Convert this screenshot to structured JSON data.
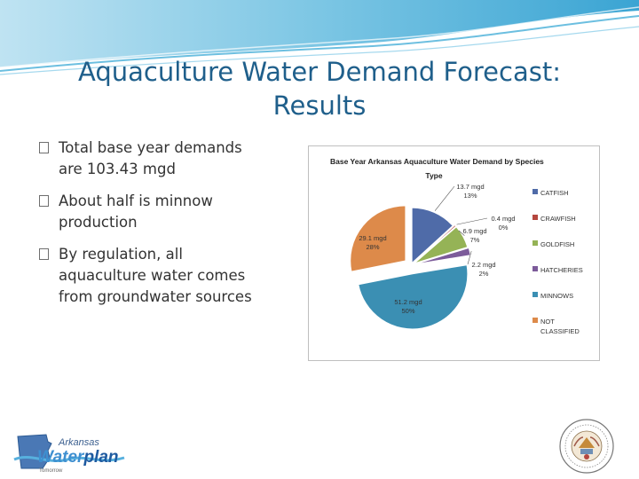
{
  "slide": {
    "title_line1": "Aquaculture Water Demand Forecast:",
    "title_line2": "Results",
    "bullets": [
      "Total base year demands are 103.43 mgd",
      "About half is minnow production",
      "By regulation, all aquaculture water comes from groundwater sources"
    ]
  },
  "logo": {
    "top": "Arkansas",
    "main_a": "Water",
    "main_b": "plan",
    "sub": "Tomorrow"
  },
  "colors": {
    "title": "#1f5f8b",
    "wave": "#5ab2d8",
    "catfish": "#4f6ba8",
    "crawfish": "#b5473f",
    "goldfish": "#95b356",
    "hatcheries": "#7c5b9a",
    "minnows": "#3b8fb3",
    "not_classified": "#dd8a4a"
  },
  "chart_data": {
    "type": "pie",
    "title_line1": "Base Year Arkansas Aquaculture Water Demand by Species",
    "title_line2": "Type",
    "slices": [
      {
        "name": "CATFISH",
        "value": 13.7,
        "label_value": "13.7 mgd",
        "label_pct": "13%",
        "color": "#4f6ba8"
      },
      {
        "name": "CRAWFISH",
        "value": 0.4,
        "label_value": "0.4 mgd",
        "label_pct": "0%",
        "color": "#b5473f"
      },
      {
        "name": "GOLDFISH",
        "value": 6.9,
        "label_value": "6.9 mgd",
        "label_pct": "7%",
        "color": "#95b356"
      },
      {
        "name": "HATCHERIES",
        "value": 2.2,
        "label_value": "2.2 mgd",
        "label_pct": "2%",
        "color": "#7c5b9a"
      },
      {
        "name": "MINNOWS",
        "value": 51.2,
        "label_value": "51.2 mgd",
        "label_pct": "50%",
        "color": "#3b8fb3"
      },
      {
        "name": "NOT CLASSIFIED",
        "value": 29.1,
        "label_value": "29.1 mgd",
        "label_pct": "28%",
        "color": "#dd8a4a"
      }
    ],
    "legend_position": "right",
    "exploded": true
  }
}
